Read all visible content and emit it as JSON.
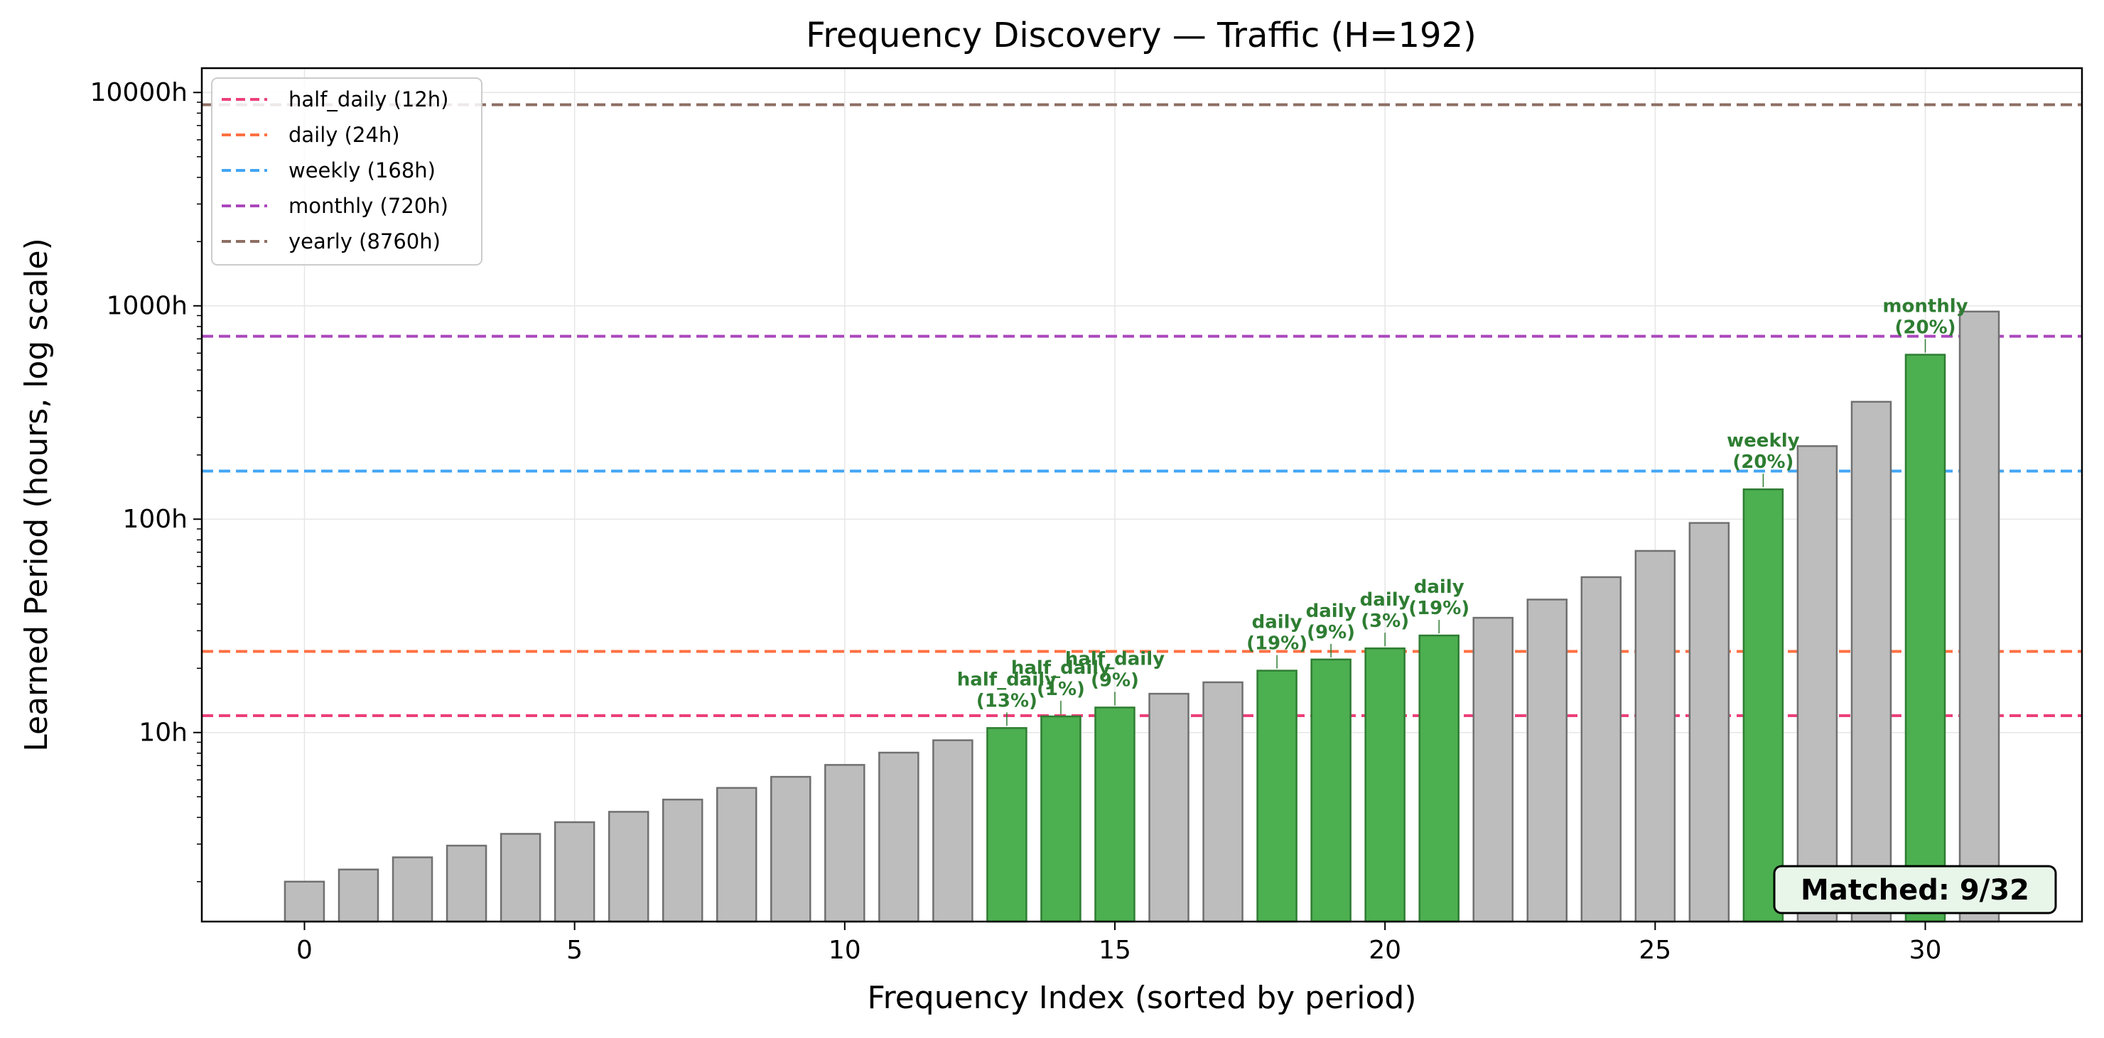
{
  "chart_data": {
    "type": "bar",
    "title": "Frequency Discovery — Traffic (H=192)",
    "xlabel": "Frequency Index (sorted by period)",
    "ylabel": "Learned Period (hours, log scale)",
    "yscale": "log",
    "ylim": [
      1.3,
      13000
    ],
    "xlim": [
      -1.9,
      32.9
    ],
    "x_ticks": [
      0,
      5,
      10,
      15,
      20,
      25,
      30
    ],
    "y_ticks": [
      {
        "value": 10,
        "label": "10h"
      },
      {
        "value": 100,
        "label": "100h"
      },
      {
        "value": 1000,
        "label": "1000h"
      },
      {
        "value": 10000,
        "label": "10000h"
      }
    ],
    "grid": true,
    "colors": {
      "unmatched_fill": "#bdbdbd",
      "unmatched_edge": "#707070",
      "matched_fill": "#4caf50",
      "matched_edge": "#2e7d32",
      "annotation": "#2e7d32",
      "box_fill": "#e8f5e9"
    },
    "bars": [
      {
        "index": 0,
        "value": 2.0,
        "matched": false
      },
      {
        "index": 1,
        "value": 2.28,
        "matched": false
      },
      {
        "index": 2,
        "value": 2.6,
        "matched": false
      },
      {
        "index": 3,
        "value": 2.95,
        "matched": false
      },
      {
        "index": 4,
        "value": 3.35,
        "matched": false
      },
      {
        "index": 5,
        "value": 3.8,
        "matched": false
      },
      {
        "index": 6,
        "value": 4.25,
        "matched": false
      },
      {
        "index": 7,
        "value": 4.85,
        "matched": false
      },
      {
        "index": 8,
        "value": 5.5,
        "matched": false
      },
      {
        "index": 9,
        "value": 6.2,
        "matched": false
      },
      {
        "index": 10,
        "value": 7.05,
        "matched": false
      },
      {
        "index": 11,
        "value": 8.05,
        "matched": false
      },
      {
        "index": 12,
        "value": 9.2,
        "matched": false
      },
      {
        "index": 13,
        "value": 10.5,
        "matched": true,
        "label_line1": "half_daily",
        "label_line2": "(13%)"
      },
      {
        "index": 14,
        "value": 11.9,
        "matched": true,
        "label_line1": "half_daily",
        "label_line2": "(1%)"
      },
      {
        "index": 15,
        "value": 13.1,
        "matched": true,
        "label_line1": "half_daily",
        "label_line2": "(9%)"
      },
      {
        "index": 16,
        "value": 15.2,
        "matched": false
      },
      {
        "index": 17,
        "value": 17.2,
        "matched": false
      },
      {
        "index": 18,
        "value": 19.5,
        "matched": true,
        "label_line1": "daily",
        "label_line2": "(19%)"
      },
      {
        "index": 19,
        "value": 22.0,
        "matched": true,
        "label_line1": "daily",
        "label_line2": "(9%)"
      },
      {
        "index": 20,
        "value": 24.8,
        "matched": true,
        "label_line1": "daily",
        "label_line2": "(3%)"
      },
      {
        "index": 21,
        "value": 28.5,
        "matched": true,
        "label_line1": "daily",
        "label_line2": "(19%)"
      },
      {
        "index": 22,
        "value": 34.5,
        "matched": false
      },
      {
        "index": 23,
        "value": 42.0,
        "matched": false
      },
      {
        "index": 24,
        "value": 53.5,
        "matched": false
      },
      {
        "index": 25,
        "value": 71.0,
        "matched": false
      },
      {
        "index": 26,
        "value": 96.0,
        "matched": false
      },
      {
        "index": 27,
        "value": 138.0,
        "matched": true,
        "label_line1": "weekly",
        "label_line2": "(20%)"
      },
      {
        "index": 28,
        "value": 220.0,
        "matched": false
      },
      {
        "index": 29,
        "value": 355.0,
        "matched": false
      },
      {
        "index": 30,
        "value": 590.0,
        "matched": true,
        "label_line1": "monthly",
        "label_line2": "(20%)"
      },
      {
        "index": 31,
        "value": 940.0,
        "matched": false
      }
    ],
    "reference_lines": [
      {
        "name": "half_daily",
        "label": "half_daily (12h)",
        "value": 12,
        "color": "#ec407a"
      },
      {
        "name": "daily",
        "label": "daily (24h)",
        "value": 24,
        "color": "#ff7043"
      },
      {
        "name": "weekly",
        "label": "weekly (168h)",
        "value": 168,
        "color": "#42a5f5"
      },
      {
        "name": "monthly",
        "label": "monthly (720h)",
        "value": 720,
        "color": "#ab47bc"
      },
      {
        "name": "yearly",
        "label": "yearly (8760h)",
        "value": 8760,
        "color": "#8d6e63"
      }
    ],
    "legend_position": "upper-left",
    "matched_box_text": "Matched: 9/32"
  }
}
